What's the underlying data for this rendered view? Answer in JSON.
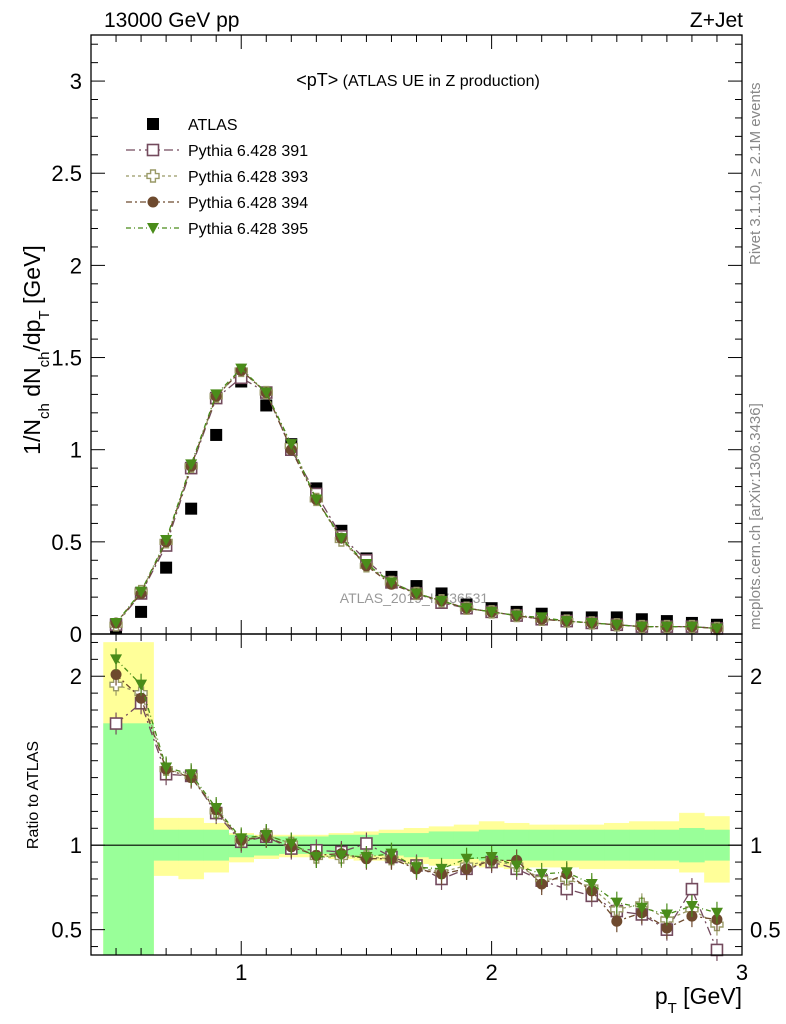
{
  "header": {
    "left": "13000 GeV pp",
    "right": "Z+Jet"
  },
  "side": {
    "rivet": "Rivet 3.1.10, ≥ 2.1M events",
    "mcplots": "mcplots.cern.ch [arXiv:1306.3436]"
  },
  "plot_title": {
    "main": "<pT>",
    "sub": " (ATLAS UE in Z production)"
  },
  "watermark": "ATLAS_2019_I1736531",
  "axes": {
    "top_ylabel": "1/N",
    "top_ylabel_sub1": "ch",
    "top_ylabel_mid1": " dN",
    "top_ylabel_sub2": "ch",
    "top_ylabel_mid2": "/dp",
    "top_ylabel_sub3": "T",
    "top_ylabel_unit": " [GeV]",
    "bottom_ylabel": "Ratio to ATLAS",
    "xlabel": "p",
    "xlabel_sub": "T",
    "xlabel_unit": " [GeV]"
  },
  "colors": {
    "band_stat": "#99ff99",
    "band_total": "#ffff99",
    "data": "#000000",
    "pythia391": "#734a5d",
    "pythia393": "#999966",
    "pythia394": "#6e4a2e",
    "pythia395": "#4a8c1a"
  },
  "chart_data": [
    {
      "type": "scatter",
      "panel": "main",
      "xlim": [
        0.4,
        3.0
      ],
      "ylim": [
        0,
        3.25
      ],
      "xticks": [
        1,
        2,
        3
      ],
      "yticks": [
        0,
        0.5,
        1,
        1.5,
        2,
        2.5,
        3
      ],
      "ytick_labels": [
        "0",
        "0.5",
        "1",
        "1.5",
        "2",
        "2.5",
        "3"
      ],
      "legend_position": "top-left",
      "x": [
        0.5,
        0.6,
        0.7,
        0.8,
        0.9,
        1.0,
        1.1,
        1.2,
        1.3,
        1.4,
        1.5,
        1.6,
        1.7,
        1.8,
        1.9,
        2.0,
        2.1,
        2.2,
        2.3,
        2.4,
        2.5,
        2.6,
        2.7,
        2.8,
        2.9
      ],
      "series": [
        {
          "name": "ATLAS",
          "marker": "square-filled",
          "values": [
            0.03,
            0.12,
            0.36,
            0.68,
            1.08,
            1.37,
            1.24,
            1.03,
            0.79,
            0.56,
            0.41,
            0.31,
            0.26,
            0.22,
            0.16,
            0.14,
            0.12,
            0.11,
            0.09,
            0.09,
            0.09,
            0.08,
            0.07,
            0.06,
            0.05
          ]
        },
        {
          "name": "Pythia 6.428 391",
          "marker": "square-open",
          "values": [
            0.05,
            0.22,
            0.48,
            0.9,
            1.28,
            1.39,
            1.31,
            1.0,
            0.76,
            0.53,
            0.4,
            0.28,
            0.22,
            0.17,
            0.14,
            0.12,
            0.1,
            0.08,
            0.07,
            0.06,
            0.05,
            0.04,
            0.04,
            0.04,
            0.03
          ]
        },
        {
          "name": "Pythia 6.428 393",
          "marker": "cross-open",
          "values": [
            0.05,
            0.23,
            0.5,
            0.91,
            1.29,
            1.43,
            1.31,
            1.02,
            0.73,
            0.51,
            0.37,
            0.28,
            0.22,
            0.18,
            0.14,
            0.12,
            0.1,
            0.08,
            0.07,
            0.06,
            0.05,
            0.04,
            0.04,
            0.04,
            0.03
          ]
        },
        {
          "name": "Pythia 6.428 394",
          "marker": "circle-filled",
          "values": [
            0.06,
            0.22,
            0.5,
            0.91,
            1.29,
            1.43,
            1.31,
            1.0,
            0.73,
            0.52,
            0.37,
            0.27,
            0.22,
            0.18,
            0.14,
            0.12,
            0.1,
            0.08,
            0.07,
            0.06,
            0.05,
            0.04,
            0.04,
            0.04,
            0.03
          ]
        },
        {
          "name": "Pythia 6.428 395",
          "marker": "triangle-down-filled",
          "values": [
            0.06,
            0.23,
            0.51,
            0.92,
            1.3,
            1.44,
            1.31,
            1.03,
            0.73,
            0.52,
            0.38,
            0.28,
            0.22,
            0.18,
            0.14,
            0.12,
            0.1,
            0.09,
            0.07,
            0.06,
            0.05,
            0.04,
            0.04,
            0.04,
            0.03
          ]
        }
      ]
    },
    {
      "type": "scatter",
      "panel": "ratio",
      "xlim": [
        0.4,
        3.0
      ],
      "ylim": [
        0.35,
        2.25
      ],
      "xticks": [
        1,
        2,
        3
      ],
      "yticks": [
        0.5,
        1,
        2
      ],
      "ytick_labels": [
        "0.5",
        "1",
        "2"
      ],
      "bin_edges": [
        0.45,
        0.55,
        0.65,
        0.75,
        0.85,
        0.95,
        1.05,
        1.15,
        1.25,
        1.35,
        1.45,
        1.55,
        1.65,
        1.75,
        1.85,
        1.95,
        2.05,
        2.15,
        2.25,
        2.35,
        2.45,
        2.55,
        2.65,
        2.75,
        2.85,
        2.95
      ],
      "band_stat": {
        "low": [
          0.35,
          0.35,
          0.91,
          0.91,
          0.91,
          0.93,
          0.94,
          0.95,
          0.95,
          0.94,
          0.94,
          0.94,
          0.93,
          0.92,
          0.92,
          0.91,
          0.91,
          0.91,
          0.91,
          0.91,
          0.91,
          0.91,
          0.91,
          0.9,
          0.91,
          0.91
        ],
        "high": [
          1.72,
          1.72,
          1.09,
          1.09,
          1.09,
          1.06,
          1.05,
          1.05,
          1.05,
          1.06,
          1.06,
          1.07,
          1.07,
          1.08,
          1.08,
          1.09,
          1.09,
          1.09,
          1.09,
          1.09,
          1.09,
          1.09,
          1.09,
          1.1,
          1.09,
          1.09
        ]
      },
      "band_total": {
        "low": [
          0.35,
          0.35,
          0.82,
          0.8,
          0.84,
          0.9,
          0.92,
          0.93,
          0.93,
          0.92,
          0.91,
          0.91,
          0.89,
          0.88,
          0.88,
          0.87,
          0.86,
          0.87,
          0.87,
          0.86,
          0.86,
          0.86,
          0.86,
          0.84,
          0.78,
          0.78
        ],
        "high": [
          2.2,
          2.2,
          1.16,
          1.16,
          1.13,
          1.07,
          1.06,
          1.06,
          1.06,
          1.07,
          1.08,
          1.09,
          1.1,
          1.11,
          1.12,
          1.14,
          1.13,
          1.12,
          1.12,
          1.12,
          1.13,
          1.14,
          1.14,
          1.19,
          1.17,
          1.17
        ]
      },
      "reference_line": 1,
      "x": [
        0.5,
        0.6,
        0.7,
        0.8,
        0.9,
        1.0,
        1.1,
        1.2,
        1.3,
        1.4,
        1.5,
        1.6,
        1.7,
        1.8,
        1.9,
        2.0,
        2.1,
        2.2,
        2.3,
        2.4,
        2.5,
        2.6,
        2.7,
        2.8,
        2.9
      ],
      "series": [
        {
          "name": "Pythia 6.428 391",
          "marker": "square-open",
          "values": [
            1.72,
            1.84,
            1.42,
            1.41,
            1.19,
            1.02,
            1.05,
            0.98,
            0.97,
            0.96,
            1.01,
            0.93,
            0.88,
            0.8,
            0.86,
            0.9,
            0.86,
            0.79,
            0.74,
            0.7,
            0.61,
            0.59,
            0.5,
            0.74,
            0.38
          ]
        },
        {
          "name": "Pythia 6.428 393",
          "marker": "cross-open",
          "values": [
            1.95,
            1.9,
            1.45,
            1.41,
            1.2,
            1.03,
            1.06,
            1.01,
            0.93,
            0.93,
            0.93,
            0.92,
            0.87,
            0.84,
            0.88,
            0.91,
            0.88,
            0.8,
            0.8,
            0.75,
            0.62,
            0.65,
            0.56,
            0.62,
            0.53
          ]
        },
        {
          "name": "Pythia 6.428 394",
          "marker": "circle-filled",
          "values": [
            2.01,
            1.87,
            1.45,
            1.4,
            1.21,
            1.03,
            1.05,
            0.99,
            0.94,
            0.95,
            0.92,
            0.92,
            0.86,
            0.83,
            0.86,
            0.91,
            0.91,
            0.77,
            0.83,
            0.73,
            0.55,
            0.6,
            0.51,
            0.58,
            0.56
          ]
        },
        {
          "name": "Pythia 6.428 395",
          "marker": "triangle-down-filled",
          "values": [
            2.1,
            1.95,
            1.46,
            1.42,
            1.22,
            1.04,
            1.06,
            1.01,
            0.93,
            0.94,
            0.93,
            0.95,
            0.87,
            0.86,
            0.92,
            0.93,
            0.88,
            0.83,
            0.84,
            0.77,
            0.66,
            0.63,
            0.59,
            0.64,
            0.6
          ]
        }
      ]
    }
  ]
}
